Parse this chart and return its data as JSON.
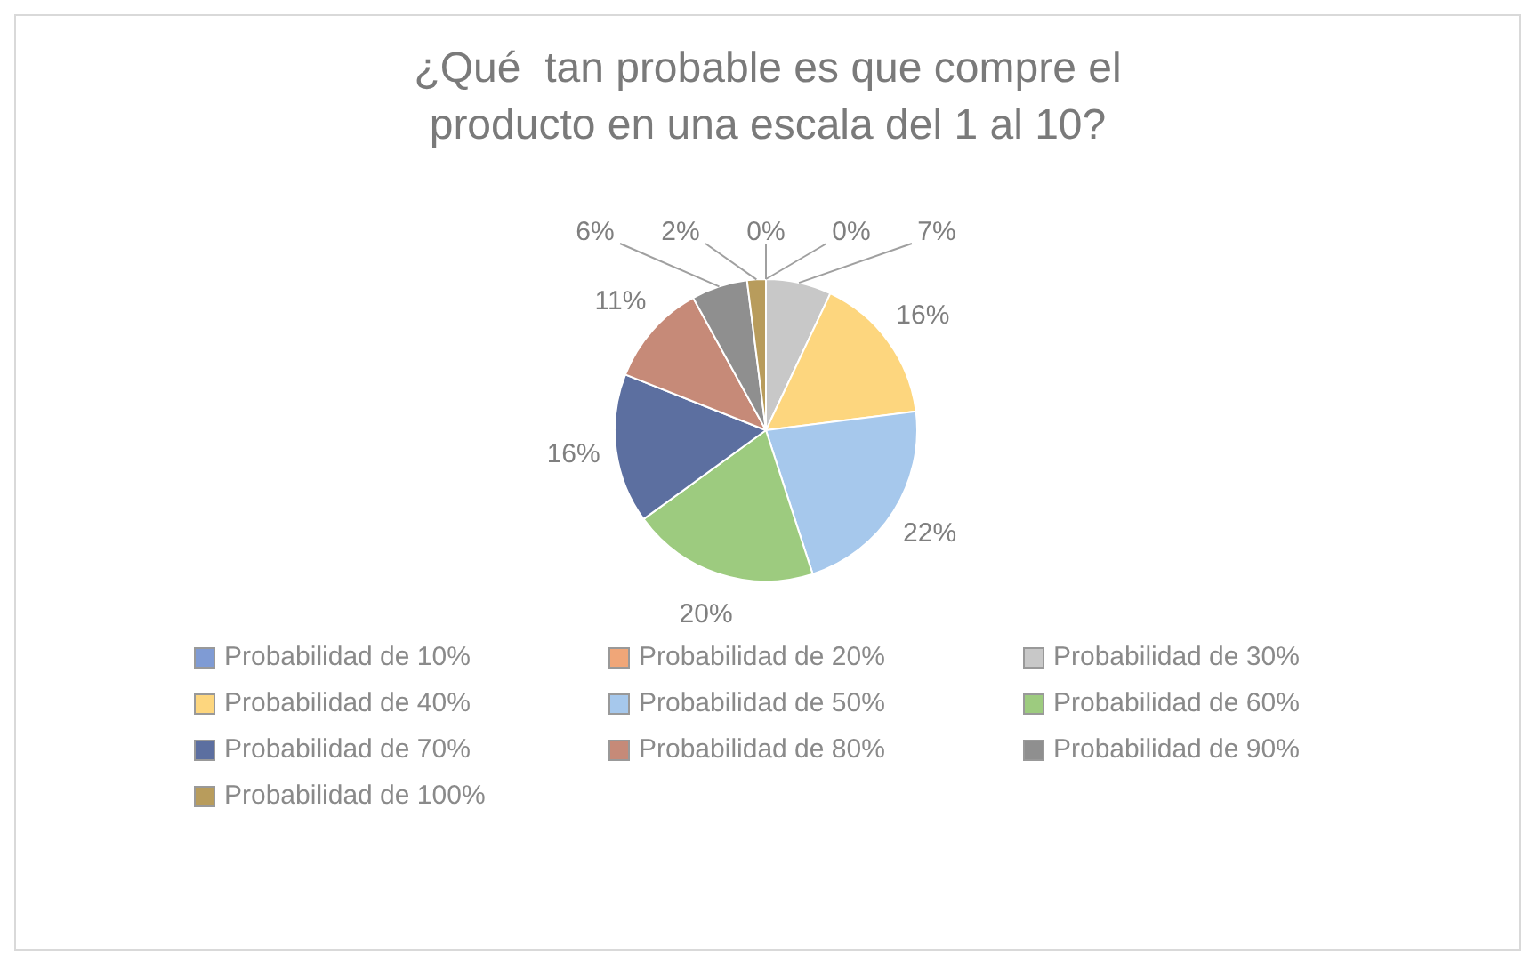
{
  "chart_data": {
    "type": "pie",
    "title": "¿Qué  tan probable es que compre el producto en una escala del 1 al 10?",
    "categories": [
      "Probabilidad de 10%",
      "Probabilidad de 20%",
      "Probabilidad de 30%",
      "Probabilidad de 40%",
      "Probabilidad de 50%",
      "Probabilidad de 60%",
      "Probabilidad de 70%",
      "Probabilidad de 80%",
      "Probabilidad de 90%",
      "Probabilidad de 100%"
    ],
    "values": [
      0,
      0,
      7,
      16,
      22,
      20,
      16,
      11,
      6,
      2
    ],
    "value_labels": [
      "0%",
      "0%",
      "7%",
      "16%",
      "22%",
      "20%",
      "16%",
      "11%",
      "6%",
      "2%"
    ],
    "colors": [
      "#7f9bd4",
      "#f0a678",
      "#c8c8c8",
      "#fdd67e",
      "#a6c8ec",
      "#9dcb7f",
      "#5c6fa0",
      "#c68a78",
      "#8f8f8f",
      "#b89c5c"
    ],
    "legend": "bottom"
  }
}
